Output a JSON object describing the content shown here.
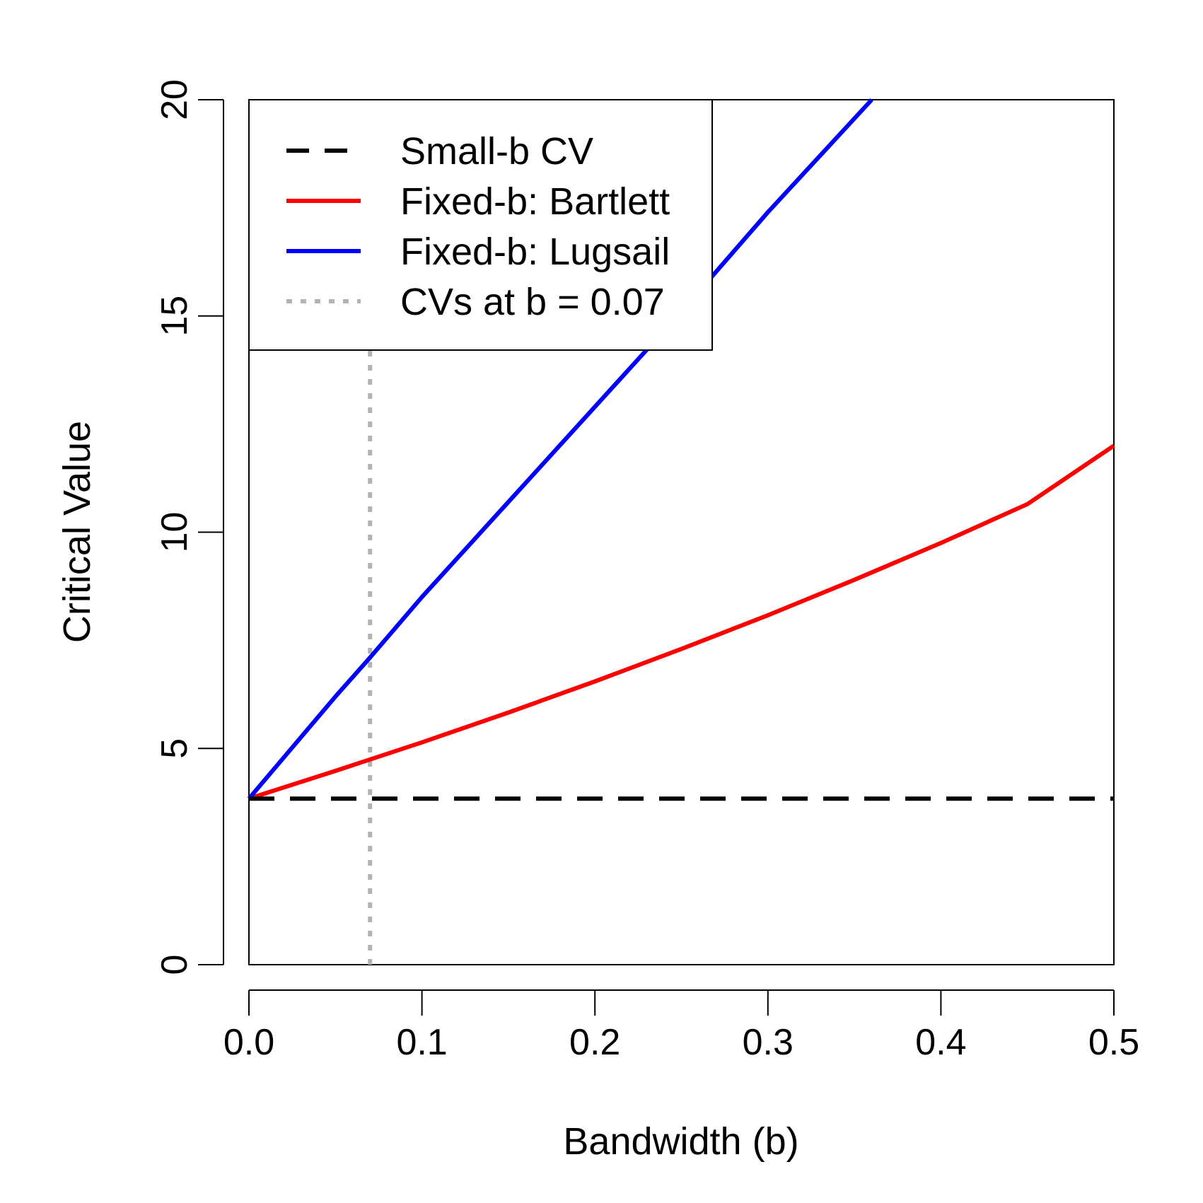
{
  "chart_data": {
    "type": "line",
    "title": "",
    "xlabel": "Bandwidth (b)",
    "ylabel": "Critical Value",
    "xlim": [
      0,
      0.5
    ],
    "ylim": [
      0,
      20
    ],
    "x_ticks": [
      "0.0",
      "0.1",
      "0.2",
      "0.3",
      "0.4",
      "0.5"
    ],
    "y_ticks": [
      "0",
      "5",
      "10",
      "15",
      "20"
    ],
    "grid": false,
    "legend_position": "top-left",
    "series": [
      {
        "name": "Small-b CV",
        "style": "dashed",
        "color": "#000000",
        "x": [
          0,
          0.5
        ],
        "y": [
          3.84,
          3.84
        ]
      },
      {
        "name": "Fixed-b: Bartlett",
        "style": "solid",
        "color": "#ff0000",
        "x": [
          0,
          0.05,
          0.1,
          0.15,
          0.2,
          0.25,
          0.3,
          0.35,
          0.4,
          0.45,
          0.5
        ],
        "y": [
          3.84,
          4.48,
          5.14,
          5.83,
          6.55,
          7.3,
          8.08,
          8.9,
          9.75,
          10.65,
          12.0
        ]
      },
      {
        "name": "Fixed-b: Lugsail",
        "style": "solid",
        "color": "#0000ff",
        "x": [
          0,
          0.05,
          0.07,
          0.1,
          0.15,
          0.2,
          0.25,
          0.3,
          0.36
        ],
        "y": [
          3.84,
          6.2,
          7.1,
          8.5,
          10.7,
          12.9,
          15.1,
          17.4,
          20.0
        ]
      },
      {
        "name": "CVs at b = 0.07",
        "style": "dotted",
        "color": "#b3b3b3",
        "x": [
          0.07,
          0.07
        ],
        "y": [
          0,
          14.2
        ]
      }
    ]
  }
}
